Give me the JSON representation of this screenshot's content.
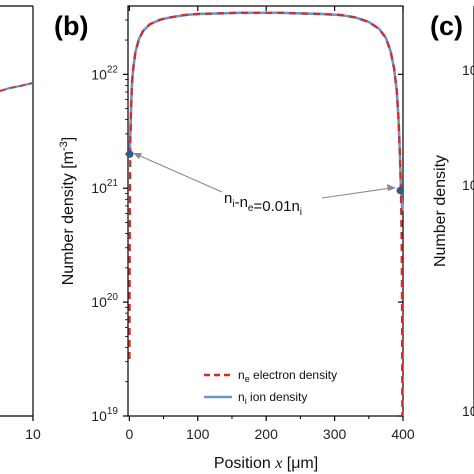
{
  "panels": {
    "left_letter": "",
    "center_letter": "(b)",
    "right_letter": "(c)"
  },
  "left_panel": {
    "x_tick": "10"
  },
  "right_panel": {
    "y_ticks": [
      "10",
      "10",
      "10"
    ],
    "ylabel": "Number density"
  },
  "chart_data": {
    "type": "line",
    "xlabel_prefix": "Position ",
    "xlabel_var": "x",
    "xlabel_unit": " [μm]",
    "ylabel": "Number density [m",
    "ylabel_sup": "-3",
    "ylabel_close": "]",
    "y_scale": "log",
    "xlim": [
      -2,
      400
    ],
    "ylim_log10": [
      19,
      22.6
    ],
    "x_ticks": [
      0,
      100,
      200,
      300,
      400
    ],
    "x_tick_labels": [
      "0",
      "100",
      "200",
      "300",
      "400"
    ],
    "y_ticks_log10": [
      19,
      20,
      21,
      22
    ],
    "y_tick_labels": [
      {
        "base": "10",
        "exp": "19"
      },
      {
        "base": "10",
        "exp": "20"
      },
      {
        "base": "10",
        "exp": "21"
      },
      {
        "base": "10",
        "exp": "22"
      }
    ],
    "series": [
      {
        "name_sub": "e",
        "name_prefix": "n",
        "name_suffix": " electron density",
        "color": "#d42a2a",
        "style": "dashed",
        "x": [
          0.2,
          0.5,
          0.9,
          1.5,
          2.5,
          4,
          6,
          9,
          14,
          20,
          30,
          45,
          60,
          80,
          100,
          130,
          160,
          190,
          220,
          250,
          280,
          310,
          330,
          350,
          365,
          375,
          382,
          387,
          391,
          393.5,
          395.5,
          397,
          398,
          398.6,
          399.0
        ],
        "y_log10": [
          19.5,
          20.4,
          21.0,
          21.4,
          21.72,
          21.94,
          22.07,
          22.2,
          22.31,
          22.38,
          22.44,
          22.48,
          22.5,
          22.52,
          22.53,
          22.535,
          22.54,
          22.54,
          22.54,
          22.535,
          22.53,
          22.52,
          22.5,
          22.46,
          22.4,
          22.32,
          22.2,
          22.05,
          21.85,
          21.6,
          21.3,
          20.95,
          20.5,
          19.9,
          19.0
        ]
      },
      {
        "name_sub": "i",
        "name_prefix": "n",
        "name_suffix": " ion density",
        "color": "#6f95c9",
        "style": "solid",
        "x": [
          0.0,
          0.3,
          0.7,
          1.2,
          2,
          3,
          4,
          6,
          9,
          14,
          20,
          30,
          45,
          60,
          80,
          100,
          130,
          160,
          190,
          220,
          250,
          280,
          310,
          330,
          350,
          365,
          375,
          382,
          387,
          391,
          393.5,
          395.5,
          397,
          398,
          398.6,
          399.0
        ],
        "y_log10": [
          21.3,
          21.32,
          21.36,
          21.44,
          21.6,
          21.78,
          21.94,
          22.07,
          22.2,
          22.31,
          22.38,
          22.44,
          22.48,
          22.5,
          22.52,
          22.53,
          22.535,
          22.54,
          22.54,
          22.54,
          22.535,
          22.53,
          22.52,
          22.5,
          22.46,
          22.4,
          22.32,
          22.2,
          22.05,
          21.85,
          21.6,
          21.3,
          21.0,
          20.9,
          20.85,
          20.8
        ]
      }
    ],
    "markers": [
      {
        "x": 0.5,
        "y_log10": 21.3
      },
      {
        "x": 396,
        "y_log10": 20.98
      }
    ],
    "annotation": {
      "parts": [
        {
          "t": "n",
          "sub": "i"
        },
        {
          "t": "-n",
          "sub": "e"
        },
        {
          "t": "=0.01n",
          "sub": "i"
        }
      ]
    },
    "legend_position": "bottom-right",
    "grid": false
  }
}
